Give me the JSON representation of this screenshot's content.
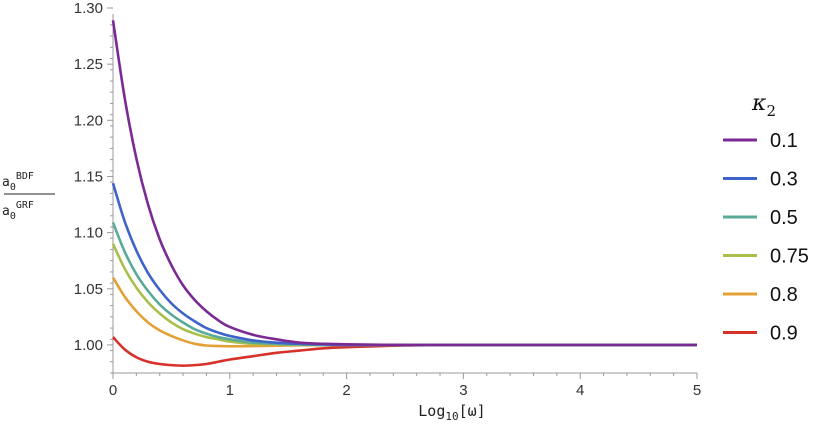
{
  "chart_data": {
    "type": "line",
    "xlabel": {
      "base": "Log",
      "sub": "10",
      "tail": "[ω]"
    },
    "ylabel": {
      "num_base": "a",
      "num_sub": "0",
      "num_sup": "BDF",
      "den_base": "a",
      "den_sub": "0",
      "den_sup": "GRF"
    },
    "xlim": [
      0,
      5
    ],
    "ylim": [
      0.975,
      1.3
    ],
    "x_ticks": [
      "0",
      "1",
      "2",
      "3",
      "4",
      "5"
    ],
    "y_ticks": [
      "1.00",
      "1.05",
      "1.10",
      "1.15",
      "1.20",
      "1.25",
      "1.30"
    ],
    "x_tick_values": [
      0,
      1,
      2,
      3,
      4,
      5
    ],
    "y_tick_values": [
      1.0,
      1.05,
      1.1,
      1.15,
      1.2,
      1.25,
      1.3
    ],
    "legend_position": "right",
    "legend_title": {
      "base": "κ",
      "sub": "2"
    },
    "x": [
      0,
      0.1,
      0.2,
      0.3,
      0.4,
      0.5,
      0.6,
      0.7,
      0.8,
      0.9,
      1.0,
      1.2,
      1.4,
      1.6,
      1.8,
      2.0,
      2.5,
      3.0,
      3.5,
      4.0,
      4.5,
      5.0
    ],
    "series": [
      {
        "name": "0.1",
        "color": "#7b2a93",
        "values": [
          1.289,
          1.22,
          1.166,
          1.125,
          1.094,
          1.071,
          1.053,
          1.04,
          1.03,
          1.022,
          1.016,
          1.009,
          1.005,
          1.002,
          1.001,
          1.0005,
          1.0,
          1.0,
          1.0,
          1.0,
          1.0,
          1.0
        ]
      },
      {
        "name": "0.3",
        "color": "#3e63c9",
        "values": [
          1.144,
          1.11,
          1.084,
          1.064,
          1.049,
          1.037,
          1.028,
          1.021,
          1.015,
          1.011,
          1.008,
          1.004,
          1.002,
          1.001,
          1.0005,
          1.0,
          1.0,
          1.0,
          1.0,
          1.0,
          1.0,
          1.0
        ]
      },
      {
        "name": "0.5",
        "color": "#5aaa9a",
        "values": [
          1.109,
          1.083,
          1.063,
          1.048,
          1.036,
          1.027,
          1.02,
          1.014,
          1.01,
          1.007,
          1.005,
          1.002,
          1.001,
          1.0005,
          1.0,
          1.0,
          1.0,
          1.0,
          1.0,
          1.0,
          1.0,
          1.0
        ]
      },
      {
        "name": "0.75",
        "color": "#a8c04a",
        "values": [
          1.09,
          1.068,
          1.051,
          1.038,
          1.028,
          1.02,
          1.014,
          1.01,
          1.007,
          1.005,
          1.003,
          1.001,
          1.0005,
          1.0,
          1.0,
          1.0,
          1.0,
          1.0,
          1.0,
          1.0,
          1.0,
          1.0
        ]
      },
      {
        "name": "0.8",
        "color": "#e3a036",
        "values": [
          1.06,
          1.043,
          1.03,
          1.02,
          1.013,
          1.008,
          1.004,
          1.001,
          0.9995,
          0.999,
          0.9988,
          0.999,
          0.9993,
          0.9996,
          0.9998,
          1.0,
          1.0,
          1.0,
          1.0,
          1.0,
          1.0,
          1.0
        ]
      },
      {
        "name": "0.9",
        "color": "#d7322a",
        "values": [
          1.007,
          0.996,
          0.989,
          0.985,
          0.983,
          0.982,
          0.9815,
          0.982,
          0.983,
          0.985,
          0.987,
          0.99,
          0.993,
          0.995,
          0.997,
          0.998,
          0.9995,
          1.0,
          1.0,
          1.0,
          1.0,
          1.0
        ]
      }
    ]
  }
}
